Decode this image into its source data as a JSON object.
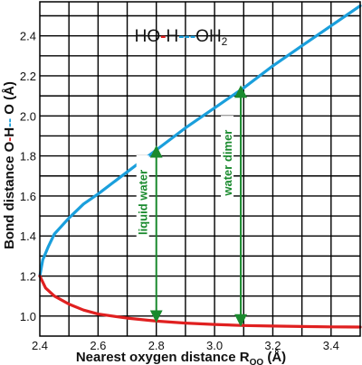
{
  "chart_data": {
    "type": "line",
    "title": "",
    "xlabel": "Nearest oxygen distance R",
    "xlabel_sub": "OO",
    "xlabel_unit": " (Å)",
    "ylabel_start": "Bond distance O",
    "ylabel_hb": "H",
    "ylabel_end": " O (Å)",
    "xlim": [
      2.4,
      3.5
    ],
    "ylim": [
      0.9,
      2.57
    ],
    "xticks": [
      2.4,
      2.6,
      2.8,
      3.0,
      3.2,
      3.4
    ],
    "xtick_labels": [
      "2.4",
      "2.6",
      "2.8",
      "3.0",
      "3.2",
      "3.4"
    ],
    "yticks": [
      1.0,
      1.2,
      1.4,
      1.6,
      1.8,
      2.0,
      2.2,
      2.4
    ],
    "ytick_labels": [
      "1.0",
      "1.2",
      "1.4",
      "1.6",
      "1.8",
      "2.0",
      "2.2",
      "2.4"
    ],
    "grid": true,
    "legend": {
      "position": "top-center",
      "formula_parts": [
        "HO",
        "H",
        "OH",
        "2"
      ]
    },
    "series": [
      {
        "color": "#1a9fdc",
        "x": [
          2.4,
          2.41,
          2.43,
          2.45,
          2.5,
          2.55,
          2.6,
          2.7,
          2.8,
          2.9,
          3.0,
          3.1,
          3.2,
          3.3,
          3.4,
          3.5
        ],
        "y": [
          1.2,
          1.28,
          1.35,
          1.41,
          1.49,
          1.56,
          1.61,
          1.72,
          1.83,
          1.94,
          2.04,
          2.14,
          2.25,
          2.35,
          2.45,
          2.55
        ]
      },
      {
        "color": "#e02020",
        "x": [
          2.4,
          2.42,
          2.45,
          2.5,
          2.55,
          2.6,
          2.7,
          2.8,
          2.9,
          3.0,
          3.1,
          3.2,
          3.3,
          3.4,
          3.5
        ],
        "y": [
          1.2,
          1.14,
          1.1,
          1.06,
          1.03,
          1.01,
          0.99,
          0.975,
          0.965,
          0.958,
          0.953,
          0.95,
          0.948,
          0.946,
          0.945
        ]
      }
    ],
    "annotations": [
      {
        "label": "liquid water",
        "x": 2.8,
        "y_top": 1.85,
        "y_bottom": 0.97,
        "color": "#1a8a2e"
      },
      {
        "label": "water dimer",
        "x": 3.09,
        "y_top": 2.15,
        "y_bottom": 0.95,
        "color": "#1a8a2e"
      }
    ]
  }
}
